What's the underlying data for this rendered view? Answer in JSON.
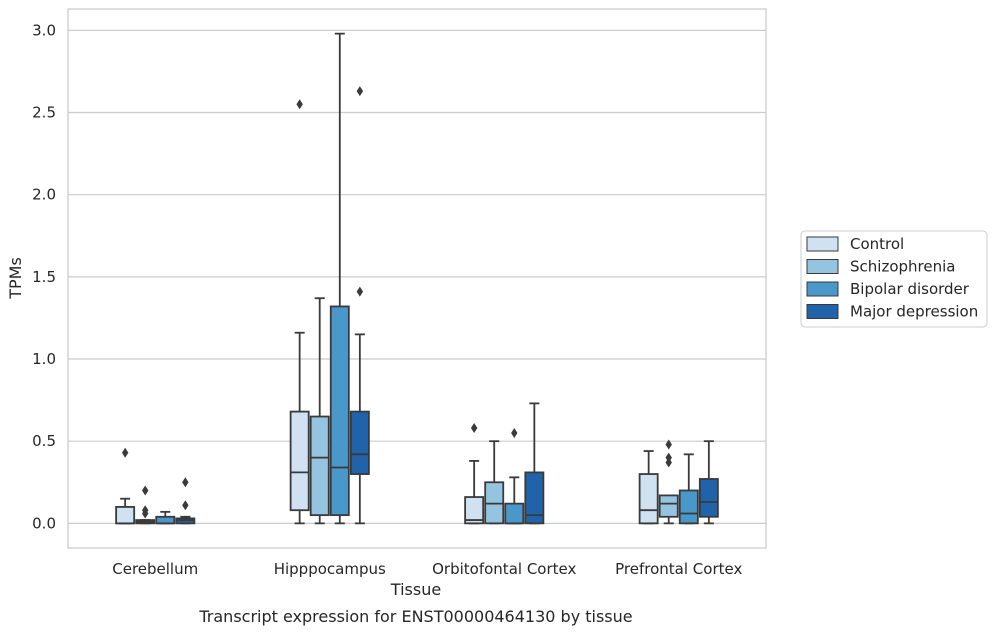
{
  "chart_data": {
    "type": "box",
    "title": "",
    "caption": "Transcript expression for ENST00000464130 by tissue",
    "xlabel": "Tissue",
    "ylabel": "TPMs",
    "ylim": [
      -0.15,
      3.13
    ],
    "yticks": [
      "0.0",
      "0.5",
      "1.0",
      "1.5",
      "2.0",
      "2.5",
      "3.0"
    ],
    "ytick_values": [
      0,
      0.5,
      1.0,
      1.5,
      2.0,
      2.5,
      3.0
    ],
    "grid": "horizontal",
    "legend_position": "right",
    "categories": [
      "Cerebellum",
      "Hipppocampus",
      "Orbitofontal Cortex",
      "Prefrontal Cortex"
    ],
    "series": [
      {
        "name": "Control",
        "color": "#d0e1f2",
        "boxes": [
          {
            "min": 0.0,
            "q1": 0.0,
            "median": 0.0,
            "q3": 0.1,
            "max": 0.15,
            "outliers": [
              0.43
            ]
          },
          {
            "min": 0.0,
            "q1": 0.08,
            "median": 0.31,
            "q3": 0.68,
            "max": 1.16,
            "outliers": [
              2.55
            ]
          },
          {
            "min": 0.0,
            "q1": 0.0,
            "median": 0.02,
            "q3": 0.16,
            "max": 0.38,
            "outliers": [
              0.58
            ]
          },
          {
            "min": 0.0,
            "q1": 0.0,
            "median": 0.08,
            "q3": 0.3,
            "max": 0.44,
            "outliers": []
          }
        ]
      },
      {
        "name": "Schizophrenia",
        "color": "#94c4df",
        "boxes": [
          {
            "min": 0.0,
            "q1": 0.0,
            "median": 0.01,
            "q3": 0.02,
            "max": 0.02,
            "outliers": [
              0.06,
              0.08,
              0.2
            ]
          },
          {
            "min": 0.0,
            "q1": 0.05,
            "median": 0.4,
            "q3": 0.65,
            "max": 1.37,
            "outliers": []
          },
          {
            "min": 0.0,
            "q1": 0.0,
            "median": 0.12,
            "q3": 0.25,
            "max": 0.5,
            "outliers": []
          },
          {
            "min": 0.0,
            "q1": 0.04,
            "median": 0.12,
            "q3": 0.17,
            "max": 0.17,
            "outliers": [
              0.37,
              0.4,
              0.48
            ]
          }
        ]
      },
      {
        "name": "Bipolar disorder",
        "color": "#4a98c9",
        "boxes": [
          {
            "min": 0.0,
            "q1": 0.0,
            "median": 0.0,
            "q3": 0.04,
            "max": 0.07,
            "outliers": []
          },
          {
            "min": 0.0,
            "q1": 0.05,
            "median": 0.34,
            "q3": 1.32,
            "max": 2.98,
            "outliers": []
          },
          {
            "min": 0.0,
            "q1": 0.0,
            "median": 0.0,
            "q3": 0.12,
            "max": 0.28,
            "outliers": [
              0.55
            ]
          },
          {
            "min": 0.0,
            "q1": 0.0,
            "median": 0.06,
            "q3": 0.2,
            "max": 0.42,
            "outliers": []
          }
        ]
      },
      {
        "name": "Major depression",
        "color": "#2163aa",
        "boxes": [
          {
            "min": 0.0,
            "q1": 0.0,
            "median": 0.02,
            "q3": 0.03,
            "max": 0.04,
            "outliers": [
              0.11,
              0.25
            ]
          },
          {
            "min": 0.0,
            "q1": 0.3,
            "median": 0.42,
            "q3": 0.68,
            "max": 1.15,
            "outliers": [
              1.41,
              2.63
            ]
          },
          {
            "min": 0.0,
            "q1": 0.0,
            "median": 0.05,
            "q3": 0.31,
            "max": 0.73,
            "outliers": []
          },
          {
            "min": 0.0,
            "q1": 0.04,
            "median": 0.13,
            "q3": 0.27,
            "max": 0.5,
            "outliers": []
          }
        ]
      }
    ]
  }
}
